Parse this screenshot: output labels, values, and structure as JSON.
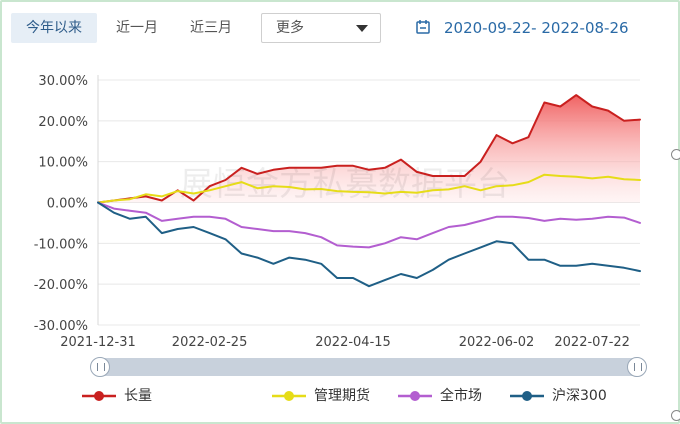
{
  "tabs": [
    {
      "label": "今年以来",
      "active": true
    },
    {
      "label": "近一月",
      "active": false
    },
    {
      "label": "近三月",
      "active": false
    }
  ],
  "period_select": {
    "value": "更多"
  },
  "date_range": "2020-09-22- 2022-08-26",
  "watermark": "展恒金方私募数据平台",
  "colors": {
    "fund": "#c9201f",
    "fund_area": "#f26b6b",
    "category": "#e6dc18",
    "market": "#b35ed0",
    "hs300": "#1f5f86",
    "accent": "#2a6aa6"
  },
  "chart_data": {
    "type": "line",
    "x_tick_labels": [
      "2021-12-31",
      "2022-02-25",
      "2022-04-15",
      "2022-06-02",
      "2022-07-22"
    ],
    "y_tick_labels": [
      "30.00%",
      "20.00%",
      "10.00%",
      "0.00%",
      "-10.00%",
      "-20.00%",
      "-30.00%"
    ],
    "ylim": [
      -30,
      30
    ],
    "x_count": 35,
    "grid": true,
    "legend_position": "bottom",
    "series": [
      {
        "name": "长量",
        "color": "#c9201f",
        "area": true,
        "values": [
          0,
          0.5,
          1,
          1.5,
          0.5,
          3,
          0.5,
          4,
          5.5,
          8.5,
          7,
          8,
          8.5,
          8.5,
          8.5,
          9,
          9,
          8,
          8.5,
          10.5,
          7.5,
          6.5,
          6.5,
          6.5,
          10,
          16.5,
          14.5,
          16,
          24.5,
          23.5,
          26.3,
          23.5,
          22.5,
          20,
          20.3
        ]
      },
      {
        "name": "管理期货",
        "color": "#e6dc18",
        "area": false,
        "values": [
          0,
          0.5,
          0.8,
          2,
          1.5,
          2.8,
          2.2,
          3,
          4,
          5,
          3.5,
          4,
          3.8,
          3.2,
          3.3,
          2.8,
          2.6,
          2.5,
          2.2,
          2.6,
          2.4,
          3,
          3.2,
          4,
          3,
          4,
          4.2,
          5,
          6.8,
          6.5,
          6.3,
          5.9,
          6.3,
          5.7,
          5.5
        ]
      },
      {
        "name": "全市场",
        "color": "#b35ed0",
        "area": false,
        "values": [
          0,
          -1.5,
          -2,
          -2.5,
          -4.5,
          -4,
          -3.5,
          -3.5,
          -4,
          -6,
          -6.5,
          -7,
          -7,
          -7.5,
          -8.5,
          -10.5,
          -10.8,
          -11,
          -10,
          -8.5,
          -9,
          -7.5,
          -6,
          -5.5,
          -4.5,
          -3.5,
          -3.5,
          -3.8,
          -4.5,
          -4,
          -4.2,
          -4,
          -3.5,
          -3.7,
          -5
        ]
      },
      {
        "name": "沪深300",
        "color": "#1f5f86",
        "area": false,
        "values": [
          0,
          -2.5,
          -4,
          -3.5,
          -7.5,
          -6.5,
          -6,
          -7.5,
          -9,
          -12.5,
          -13.5,
          -15,
          -13.5,
          -14,
          -15,
          -18.5,
          -18.5,
          -20.5,
          -19,
          -17.5,
          -18.5,
          -16.5,
          -14,
          -12.5,
          -11,
          -9.5,
          -10,
          -14,
          -14,
          -15.5,
          -15.5,
          -15,
          -15.5,
          -16,
          -16.8
        ]
      }
    ]
  }
}
